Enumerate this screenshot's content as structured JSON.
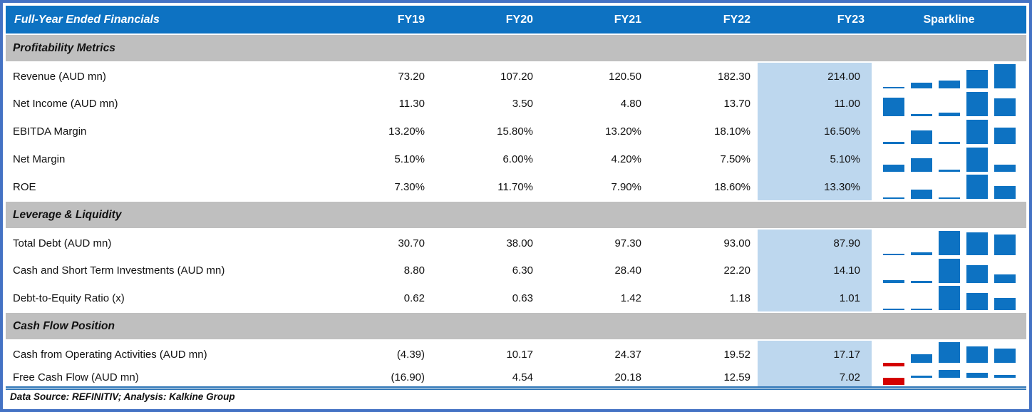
{
  "table": {
    "title": "Full-Year Ended Financials",
    "columns": [
      "FY19",
      "FY20",
      "FY21",
      "FY22",
      "FY23"
    ],
    "sparkline_label": "Sparkline",
    "highlight_column": "FY23",
    "sections": [
      {
        "label": "Profitability Metrics",
        "rows": [
          {
            "label": "Revenue (AUD mn)",
            "display": [
              "73.20",
              "107.20",
              "120.50",
              "182.30",
              "214.00"
            ],
            "values": [
              73.2,
              107.2,
              120.5,
              182.3,
              214.0
            ]
          },
          {
            "label": "Net Income (AUD mn)",
            "display": [
              "11.30",
              "3.50",
              "4.80",
              "13.70",
              "11.00"
            ],
            "values": [
              11.3,
              3.5,
              4.8,
              13.7,
              11.0
            ]
          },
          {
            "label": "EBITDA Margin",
            "display": [
              "13.20%",
              "15.80%",
              "13.20%",
              "18.10%",
              "16.50%"
            ],
            "values": [
              13.2,
              15.8,
              13.2,
              18.1,
              16.5
            ]
          },
          {
            "label": "Net Margin",
            "display": [
              "5.10%",
              "6.00%",
              "4.20%",
              "7.50%",
              "5.10%"
            ],
            "values": [
              5.1,
              6.0,
              4.2,
              7.5,
              5.1
            ]
          },
          {
            "label": "ROE",
            "display": [
              "7.30%",
              "11.70%",
              "7.90%",
              "18.60%",
              "13.30%"
            ],
            "values": [
              7.3,
              11.7,
              7.9,
              18.6,
              13.3
            ]
          }
        ]
      },
      {
        "label": "Leverage & Liquidity",
        "rows": [
          {
            "label": "Total Debt (AUD mn)",
            "display": [
              "30.70",
              "38.00",
              "97.30",
              "93.00",
              "87.90"
            ],
            "values": [
              30.7,
              38.0,
              97.3,
              93.0,
              87.9
            ]
          },
          {
            "label": "Cash and Short Term Investments (AUD mn)",
            "display": [
              "8.80",
              "6.30",
              "28.40",
              "22.20",
              "14.10"
            ],
            "values": [
              8.8,
              6.3,
              28.4,
              22.2,
              14.1
            ]
          },
          {
            "label": "Debt-to-Equity Ratio (x)",
            "display": [
              "0.62",
              "0.63",
              "1.42",
              "1.18",
              "1.01"
            ],
            "values": [
              0.62,
              0.63,
              1.42,
              1.18,
              1.01
            ]
          }
        ]
      },
      {
        "label": "Cash Flow Position",
        "rows": [
          {
            "label": "Cash from Operating Activities (AUD mn)",
            "display": [
              "(4.39)",
              "10.17",
              "24.37",
              "19.52",
              "17.17"
            ],
            "values": [
              -4.39,
              10.17,
              24.37,
              19.52,
              17.17
            ]
          },
          {
            "label": "Free Cash Flow (AUD mn)",
            "display": [
              "(16.90)",
              "4.54",
              "20.18",
              "12.59",
              "7.02"
            ],
            "values": [
              -16.9,
              4.54,
              20.18,
              12.59,
              7.02
            ],
            "short": true
          }
        ]
      }
    ],
    "footer": "Data Source: REFINITIV; Analysis: Kalkine Group",
    "colors": {
      "header_blue": "#0D72C2",
      "section_gray": "#BFBFBF",
      "fy23_highlight": "#BDD7EE",
      "sparkline_blue": "#0D72C2",
      "sparkline_negative_red": "#D40000",
      "frame_border_blue": "#4472C4",
      "footer_rule_blue": "#2E75B6"
    }
  },
  "chart_data": {
    "type": "table",
    "title": "Full-Year Ended Financials",
    "categories": [
      "FY19",
      "FY20",
      "FY21",
      "FY22",
      "FY23"
    ],
    "legend_position": "none",
    "grid": false,
    "series": [
      {
        "name": "Revenue (AUD mn)",
        "values": [
          73.2,
          107.2,
          120.5,
          182.3,
          214.0
        ]
      },
      {
        "name": "Net Income (AUD mn)",
        "values": [
          11.3,
          3.5,
          4.8,
          13.7,
          11.0
        ]
      },
      {
        "name": "EBITDA Margin (%)",
        "values": [
          13.2,
          15.8,
          13.2,
          18.1,
          16.5
        ]
      },
      {
        "name": "Net Margin (%)",
        "values": [
          5.1,
          6.0,
          4.2,
          7.5,
          5.1
        ]
      },
      {
        "name": "ROE (%)",
        "values": [
          7.3,
          11.7,
          7.9,
          18.6,
          13.3
        ]
      },
      {
        "name": "Total Debt (AUD mn)",
        "values": [
          30.7,
          38.0,
          97.3,
          93.0,
          87.9
        ]
      },
      {
        "name": "Cash and Short Term Investments (AUD mn)",
        "values": [
          8.8,
          6.3,
          28.4,
          22.2,
          14.1
        ]
      },
      {
        "name": "Debt-to-Equity Ratio (x)",
        "values": [
          0.62,
          0.63,
          1.42,
          1.18,
          1.01
        ]
      },
      {
        "name": "Cash from Operating Activities (AUD mn)",
        "values": [
          -4.39,
          10.17,
          24.37,
          19.52,
          17.17
        ]
      },
      {
        "name": "Free Cash Flow (AUD mn)",
        "values": [
          -16.9,
          4.54,
          20.18,
          12.59,
          7.02
        ]
      }
    ],
    "annotations": [
      "Each row has a column sparkline; negative values drawn in red below axis",
      "FY23 column highlighted light blue"
    ]
  }
}
